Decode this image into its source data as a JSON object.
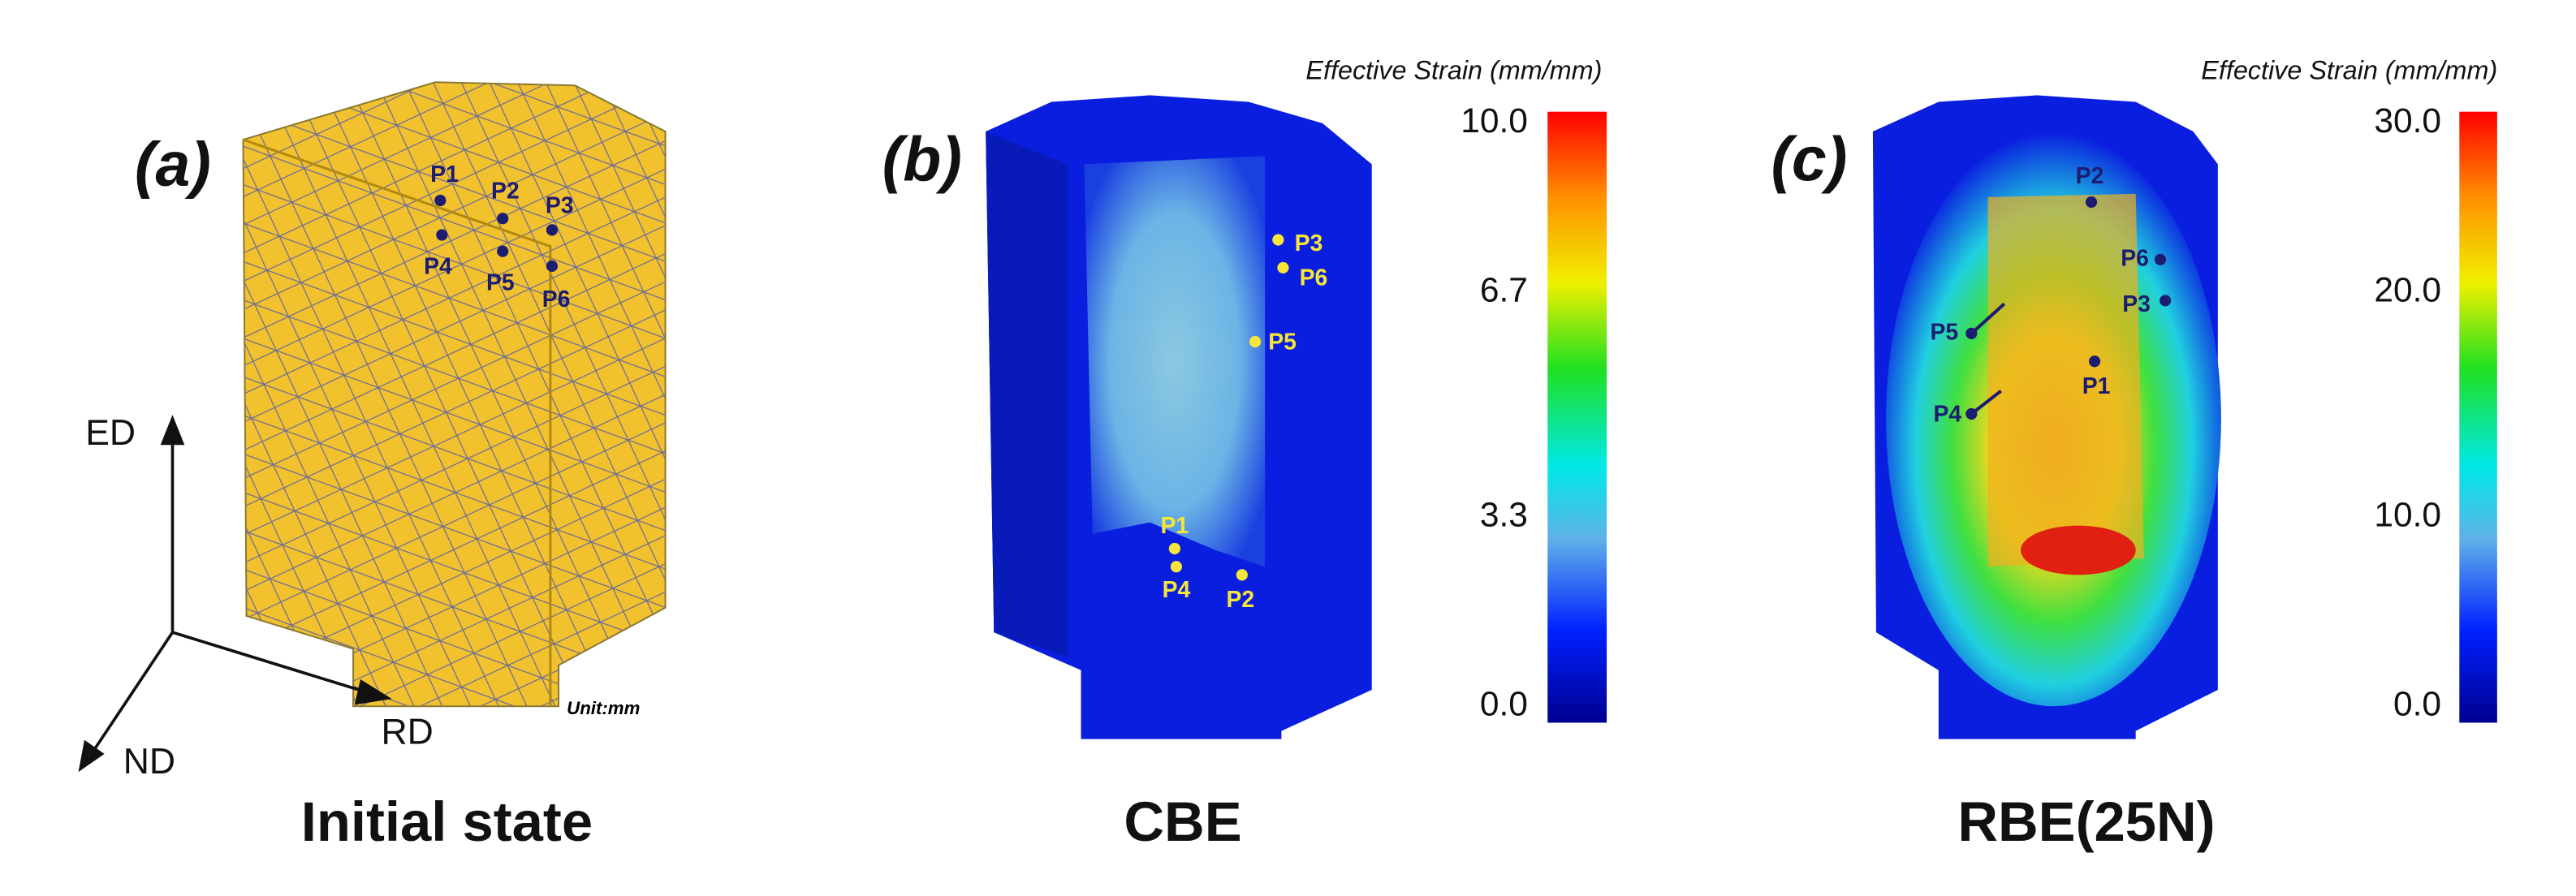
{
  "panels": [
    {
      "label": "(a)",
      "caption": "Initial state",
      "unit": "Unit:mm",
      "axes": [
        "ED",
        "RD",
        "ND"
      ],
      "points": [
        "P1",
        "P2",
        "P3",
        "P4",
        "P5",
        "P6"
      ]
    },
    {
      "label": "(b)",
      "caption": "CBE",
      "colorbar": {
        "title": "Effective Strain (mm/mm)",
        "ticks": [
          "10.0",
          "6.7",
          "3.3",
          "0.0"
        ]
      },
      "points": [
        "P3",
        "P6",
        "P5",
        "P1",
        "P4",
        "P2"
      ]
    },
    {
      "label": "(c)",
      "caption": "RBE(25N)",
      "colorbar": {
        "title": "Effective Strain (mm/mm)",
        "ticks": [
          "30.0",
          "20.0",
          "10.0",
          "0.0"
        ]
      },
      "points": [
        "P2",
        "P6",
        "P3",
        "P5",
        "P1",
        "P4"
      ]
    }
  ]
}
